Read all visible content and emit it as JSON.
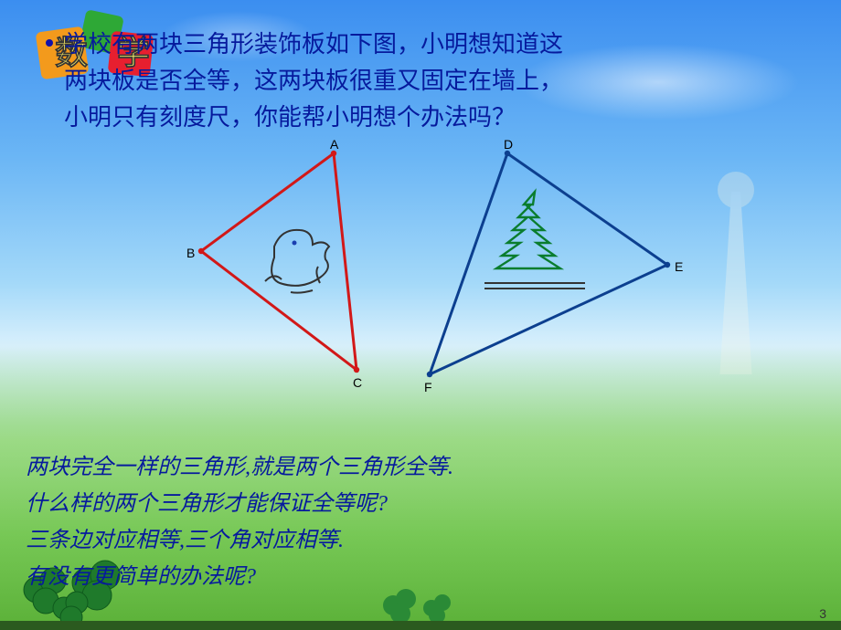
{
  "colors": {
    "accent_text": "#061a9d",
    "triangle_left": "#d21818",
    "triangle_right": "#0c3f8f",
    "tree_green": "#0a7d2e"
  },
  "logo": {
    "label": "数学"
  },
  "question": {
    "line1": "学校有两块三角形装饰板如下图，小明想知道这",
    "line2": "两块板是否全等，这两块板很重又固定在墙上，",
    "line3": "小明只有刻度尺，你能帮小明想个办法吗？"
  },
  "triangle_left": {
    "labels": {
      "A": "A",
      "B": "B",
      "C": "C"
    },
    "vertices": {
      "A": [
        165,
        8
      ],
      "B": [
        20,
        115
      ],
      "C": [
        190,
        245
      ]
    },
    "color": "#d21818"
  },
  "triangle_right": {
    "labels": {
      "D": "D",
      "E": "E",
      "F": "F"
    },
    "vertices": {
      "D": [
        355,
        8
      ],
      "E": [
        530,
        130
      ],
      "F": [
        270,
        250
      ]
    },
    "color": "#0c3f8f"
  },
  "bottom": {
    "l1": "两块完全一样的三角形,就是两个三角形全等.",
    "l2": "什么样的两个三角形才能保证全等呢?",
    "l3": "三条边对应相等,三个角对应相等.",
    "l4": "有没有更简单的办法呢?"
  },
  "page_number": "3"
}
